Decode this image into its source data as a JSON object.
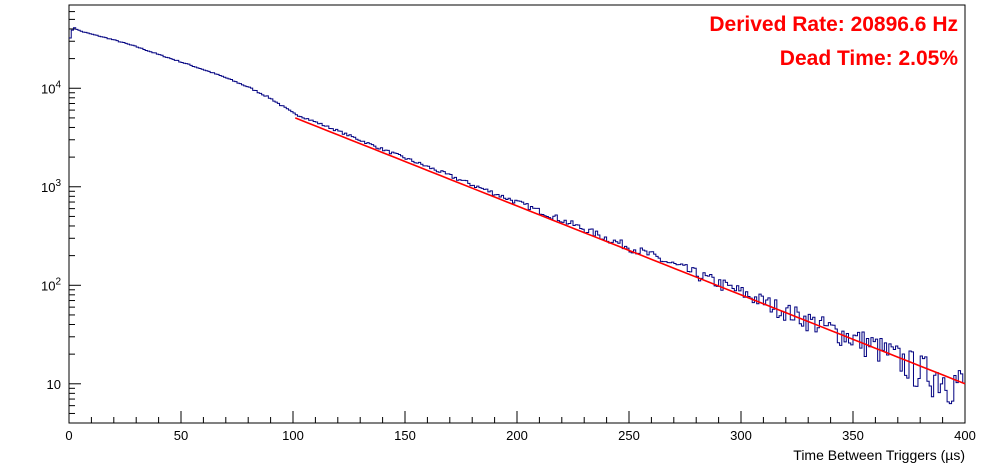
{
  "chart_data": {
    "type": "line",
    "title": "",
    "xlabel": "Time Between Triggers (µs)",
    "ylabel": "",
    "xlim": [
      0,
      400
    ],
    "ylim": [
      4,
      70000
    ],
    "yscale": "log",
    "grid": false,
    "x_ticks": [
      "0",
      "50",
      "100",
      "150",
      "200",
      "250",
      "300",
      "350",
      "400"
    ],
    "y_ticks": [
      {
        "value": 10000,
        "base": "10",
        "exp": "4"
      },
      {
        "value": 1000,
        "base": "10",
        "exp": "3"
      },
      {
        "value": 100,
        "base": "10",
        "exp": "2"
      },
      {
        "value": 10,
        "base": "10",
        "exp": ""
      }
    ],
    "annotations": [
      "Derived Rate: 20896.6 Hz",
      "Dead Time: 2.05%"
    ],
    "series": [
      {
        "type": "histogram",
        "color": "#000080",
        "x": [
          0,
          2,
          4,
          6,
          8,
          10,
          20,
          30,
          40,
          50,
          60,
          70,
          80,
          90,
          100,
          120,
          140,
          160,
          180,
          200,
          220,
          240,
          260,
          280,
          300,
          320,
          340,
          360,
          380,
          400
        ],
        "values": [
          30000,
          42000,
          39000,
          37500,
          36500,
          35500,
          31000,
          26500,
          22000,
          18500,
          15500,
          12800,
          10300,
          7900,
          5600,
          3700,
          2400,
          1600,
          1050,
          700,
          460,
          300,
          200,
          130,
          85,
          55,
          36,
          24,
          14,
          10
        ]
      },
      {
        "type": "fit",
        "color": "#ff0000",
        "x": [
          101,
          400
        ],
        "values": [
          5000,
          10
        ]
      }
    ]
  }
}
